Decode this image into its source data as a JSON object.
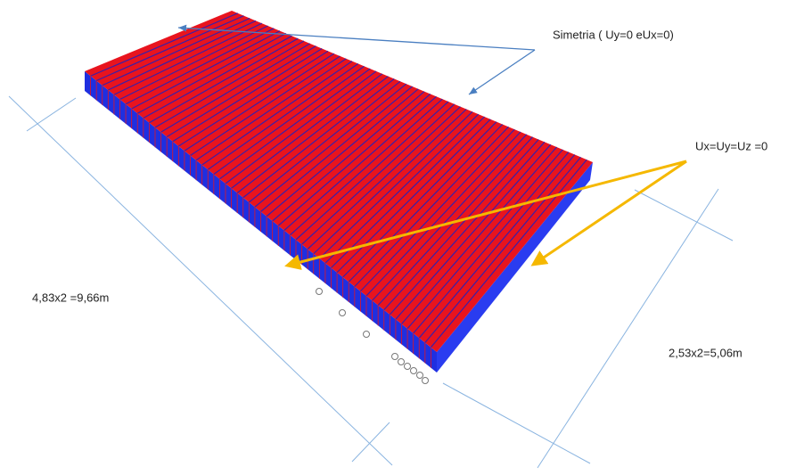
{
  "annotations": {
    "symmetry": "Simetria ( Uy=0 eUx=0)",
    "fixed": "Ux=Uy=Uz =0",
    "length": "4,83x2 =9,66m",
    "width": "2,53x2=5,06m"
  }
}
